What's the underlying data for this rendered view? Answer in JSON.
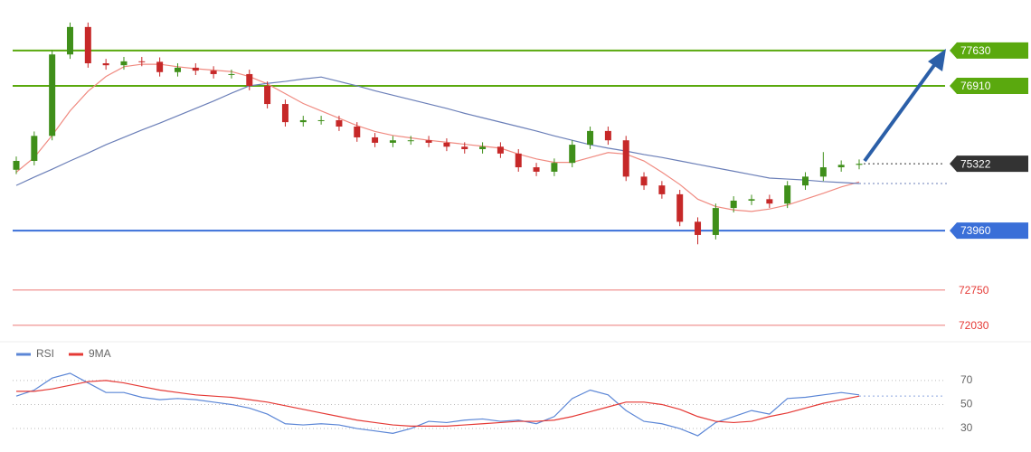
{
  "chart_data": [
    {
      "type": "candlestick",
      "ylim": [
        71750,
        78660
      ],
      "up_color": "#3f8f1a",
      "down_color": "#c62828",
      "open": [
        75200,
        75380,
        75890,
        77550,
        78110,
        77370,
        77330,
        77410,
        77400,
        77190,
        77280,
        77220,
        77150,
        77150,
        76910,
        76540,
        76170,
        76210,
        76210,
        76080,
        75860,
        75750,
        75800,
        75800,
        75750,
        75670,
        75620,
        75670,
        75530,
        75250,
        75160,
        75340,
        75710,
        75990,
        75800,
        75060,
        74880,
        74700,
        74140,
        73870,
        74420,
        74570,
        74600,
        74510,
        74880,
        75060,
        75250,
        75300
      ],
      "high": [
        75470,
        75980,
        77640,
        78200,
        78200,
        77460,
        77500,
        77500,
        77490,
        77370,
        77370,
        77310,
        77240,
        77240,
        77000,
        76630,
        76300,
        76300,
        76300,
        76170,
        75950,
        75890,
        75890,
        75890,
        75840,
        75760,
        75760,
        75760,
        75620,
        75340,
        75430,
        75800,
        76080,
        76080,
        75890,
        75150,
        74970,
        74790,
        74230,
        74510,
        74660,
        74690,
        74690,
        74970,
        75150,
        75560,
        75390,
        75410
      ],
      "low": [
        75110,
        75290,
        75800,
        77460,
        77280,
        77240,
        77240,
        77310,
        77100,
        77100,
        77130,
        77060,
        77060,
        76820,
        76450,
        76080,
        76080,
        76120,
        75990,
        75770,
        75660,
        75660,
        75710,
        75660,
        75580,
        75530,
        75530,
        75440,
        75160,
        75070,
        75070,
        75250,
        75620,
        75710,
        74970,
        74790,
        74610,
        74050,
        73680,
        73780,
        74330,
        74480,
        74420,
        74420,
        74790,
        74970,
        75160,
        75210
      ],
      "close": [
        75380,
        75890,
        77550,
        78110,
        77370,
        77330,
        77410,
        77400,
        77190,
        77280,
        77220,
        77150,
        77150,
        76910,
        76540,
        76170,
        76210,
        76210,
        76080,
        75860,
        75750,
        75800,
        75800,
        75750,
        75670,
        75620,
        75670,
        75530,
        75250,
        75160,
        75340,
        75710,
        75990,
        75800,
        75060,
        74880,
        74700,
        74140,
        73870,
        74420,
        74570,
        74600,
        74510,
        74880,
        75060,
        75250,
        75300,
        75322
      ],
      "series": [
        {
          "color": "#f08a80",
          "values": [
            75150,
            75450,
            75900,
            76400,
            76800,
            77100,
            77300,
            77350,
            77350,
            77300,
            77260,
            77230,
            77200,
            77100,
            76950,
            76750,
            76550,
            76400,
            76250,
            76100,
            75980,
            75900,
            75850,
            75800,
            75760,
            75720,
            75680,
            75640,
            75520,
            75420,
            75350,
            75350,
            75450,
            75550,
            75520,
            75380,
            75150,
            74900,
            74600,
            74450,
            74380,
            74350,
            74400,
            74480,
            74600,
            74720,
            74850,
            74950
          ]
        },
        {
          "color": "#6b7fb8",
          "values": [
            74880,
            75050,
            75210,
            75380,
            75540,
            75710,
            75860,
            76010,
            76150,
            76300,
            76450,
            76600,
            76760,
            76910,
            76960,
            77000,
            77050,
            77090,
            77000,
            76910,
            76810,
            76720,
            76630,
            76540,
            76450,
            76350,
            76260,
            76170,
            76080,
            75990,
            75890,
            75800,
            75710,
            75640,
            75580,
            75510,
            75450,
            75380,
            75310,
            75240,
            75170,
            75100,
            75030,
            75010,
            74990,
            74960,
            74940,
            74920
          ]
        }
      ],
      "levels": [
        {
          "value": 77630,
          "color": "#5aa90e",
          "style": "solid",
          "label_box": true
        },
        {
          "value": 76910,
          "color": "#5aa90e",
          "style": "solid",
          "label_box": true
        },
        {
          "value": 75322,
          "color": "#333333",
          "style": "dotted",
          "label_box": true
        },
        {
          "value": 73960,
          "color": "#3a6fd8",
          "style": "solid",
          "label_box": true
        },
        {
          "value": 72750,
          "color": "#e53935",
          "style": "faint",
          "label_box": false
        },
        {
          "value": 72030,
          "color": "#e53935",
          "style": "faint",
          "label_box": false
        }
      ]
    },
    {
      "type": "line",
      "ylim": [
        15,
        100
      ],
      "yticks": [
        70,
        50,
        30
      ],
      "series": [
        {
          "name": "RSI",
          "color": "#5b86d6",
          "values": [
            57,
            62,
            72,
            76,
            68,
            60,
            60,
            56,
            54,
            55,
            54,
            52,
            50,
            47,
            42,
            34,
            33,
            34,
            33,
            30,
            28,
            26,
            30,
            36,
            35,
            37,
            38,
            36,
            37,
            34,
            40,
            55,
            62,
            58,
            45,
            36,
            34,
            30,
            24,
            35,
            40,
            45,
            42,
            55,
            56,
            58,
            60,
            58
          ]
        },
        {
          "name": "9MA",
          "color": "#e53935",
          "values": [
            61,
            61,
            63,
            66,
            69,
            70,
            68,
            65,
            62,
            60,
            58,
            57,
            56,
            54,
            52,
            49,
            46,
            43,
            40,
            37,
            35,
            33,
            32,
            32,
            32,
            33,
            34,
            35,
            36,
            36,
            37,
            40,
            44,
            48,
            52,
            52,
            50,
            46,
            40,
            36,
            35,
            36,
            40,
            43,
            47,
            51,
            54,
            57
          ]
        }
      ]
    }
  ]
}
